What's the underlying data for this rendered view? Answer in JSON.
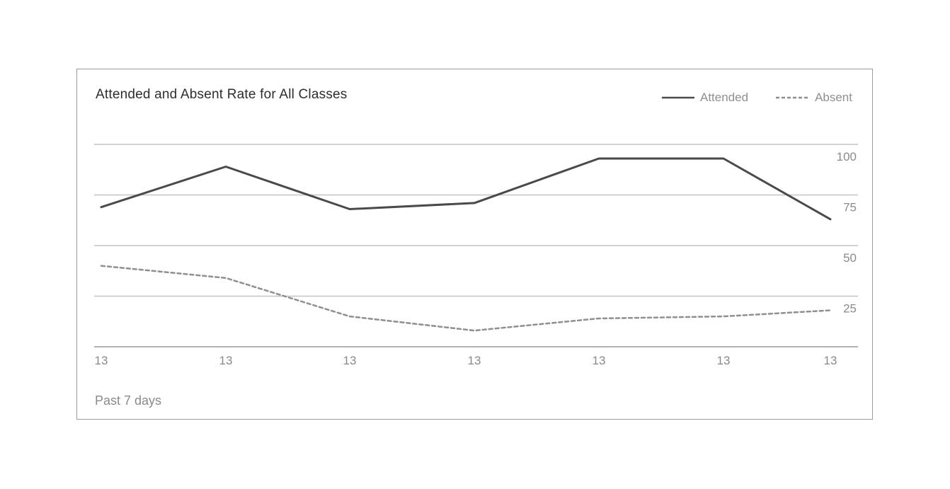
{
  "card": {
    "border_color": "#9b9b9b",
    "background": "#ffffff"
  },
  "chart_data": {
    "type": "line",
    "title": "Attended and Absent Rate for All Classes",
    "x_axis_note": "Past 7 days",
    "x_tick_labels": [
      "13",
      "13",
      "13",
      "13",
      "13",
      "13",
      "13"
    ],
    "y_ticks": [
      100,
      75,
      50,
      25
    ],
    "ylim": [
      0,
      100
    ],
    "y_axis_side": "right",
    "grid": "horizontal-only",
    "legend_position": "top-right",
    "series": [
      {
        "name": "Attended",
        "style": "solid",
        "color": "#4a4a4a",
        "values": [
          69,
          89,
          68,
          71,
          93,
          93,
          63
        ]
      },
      {
        "name": "Absent",
        "style": "dashed",
        "color": "#8f8f8f",
        "values": [
          40,
          34,
          15,
          8,
          14,
          15,
          18
        ]
      }
    ],
    "colors": {
      "gridline": "#c4c4c4",
      "axis_line": "#b2b2b2",
      "tick_label": "#8a8a8a",
      "title_text": "#2e2e2e",
      "legend_text": "#8f8f8f"
    }
  }
}
